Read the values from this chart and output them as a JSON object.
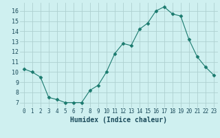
{
  "x": [
    0,
    1,
    2,
    3,
    4,
    5,
    6,
    7,
    8,
    9,
    10,
    11,
    12,
    13,
    14,
    15,
    16,
    17,
    18,
    19,
    20,
    21,
    22,
    23
  ],
  "y": [
    10.3,
    10.0,
    9.5,
    7.5,
    7.3,
    7.0,
    7.0,
    7.0,
    8.2,
    8.7,
    10.0,
    11.8,
    12.8,
    12.6,
    14.2,
    14.8,
    16.0,
    16.4,
    15.7,
    15.5,
    13.2,
    11.5,
    10.5,
    9.7
  ],
  "line_color": "#1a7a6e",
  "marker": "D",
  "marker_size": 2.5,
  "bg_color": "#cff0f0",
  "grid_color": "#aed0d0",
  "xlabel": "Humidex (Indice chaleur)",
  "ylim": [
    6.5,
    16.8
  ],
  "xlim": [
    -0.5,
    23.5
  ],
  "yticks": [
    7,
    8,
    9,
    10,
    11,
    12,
    13,
    14,
    15,
    16
  ],
  "xticks": [
    0,
    1,
    2,
    3,
    4,
    5,
    6,
    7,
    8,
    9,
    10,
    11,
    12,
    13,
    14,
    15,
    16,
    17,
    18,
    19,
    20,
    21,
    22,
    23
  ],
  "xtick_labels": [
    "0",
    "1",
    "2",
    "3",
    "4",
    "5",
    "6",
    "7",
    "8",
    "9",
    "10",
    "11",
    "12",
    "13",
    "14",
    "15",
    "16",
    "17",
    "18",
    "19",
    "20",
    "21",
    "22",
    "23"
  ]
}
